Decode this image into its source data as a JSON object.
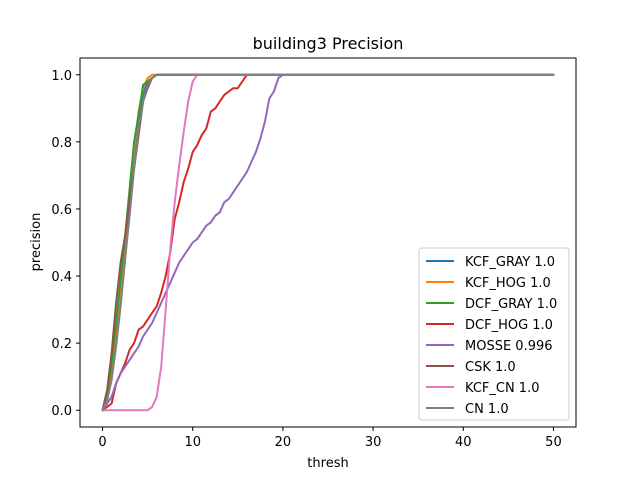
{
  "chart_data": {
    "type": "line",
    "title": "building3 Precision",
    "xlabel": "thresh",
    "ylabel": "precision",
    "xlim": [
      -2.5,
      52.5
    ],
    "ylim": [
      -0.05,
      1.05
    ],
    "xticks": [
      0,
      10,
      20,
      30,
      40,
      50
    ],
    "yticks": [
      0.0,
      0.2,
      0.4,
      0.6,
      0.8,
      1.0
    ],
    "xtick_labels": [
      "0",
      "10",
      "20",
      "30",
      "40",
      "50"
    ],
    "ytick_labels": [
      "0.0",
      "0.2",
      "0.4",
      "0.6",
      "0.8",
      "1.0"
    ],
    "grid": false,
    "legend_position": "lower-right",
    "series": [
      {
        "name": "KCF_GRAY 1.0",
        "color": "#1f77b4",
        "x": [
          0,
          0.5,
          1,
          1.5,
          2,
          2.5,
          3,
          3.5,
          4,
          4.5,
          5,
          5.5,
          6,
          7,
          8,
          50
        ],
        "y": [
          0,
          0.03,
          0.1,
          0.2,
          0.32,
          0.45,
          0.6,
          0.74,
          0.86,
          0.94,
          0.98,
          0.99,
          1.0,
          1.0,
          1.0,
          1.0
        ]
      },
      {
        "name": "KCF_HOG 1.0",
        "color": "#ff7f0e",
        "x": [
          0,
          0.5,
          1,
          1.5,
          2,
          2.5,
          3,
          3.5,
          4,
          4.5,
          5,
          5.5,
          6,
          7,
          8,
          50
        ],
        "y": [
          0,
          0.04,
          0.12,
          0.24,
          0.36,
          0.5,
          0.65,
          0.78,
          0.89,
          0.96,
          0.99,
          1.0,
          1.0,
          1.0,
          1.0,
          1.0
        ]
      },
      {
        "name": "DCF_GRAY 1.0",
        "color": "#2ca02c",
        "x": [
          0,
          0.5,
          1,
          1.5,
          2,
          2.5,
          3,
          3.5,
          4,
          4.5,
          5,
          5.5,
          6,
          7,
          8,
          50
        ],
        "y": [
          0,
          0.05,
          0.14,
          0.26,
          0.39,
          0.52,
          0.66,
          0.8,
          0.88,
          0.97,
          0.98,
          0.99,
          1.0,
          1.0,
          1.0,
          1.0
        ]
      },
      {
        "name": "DCF_HOG 1.0",
        "color": "#d62728",
        "x": [
          0,
          0.5,
          1,
          1.5,
          2,
          2.5,
          3,
          3.5,
          4,
          4.5,
          5,
          5.5,
          6,
          6.5,
          7,
          7.5,
          8,
          8.5,
          9,
          9.5,
          10,
          10.5,
          11,
          11.5,
          12,
          12.5,
          13,
          13.5,
          14,
          14.5,
          15,
          15.5,
          16,
          17,
          50
        ],
        "y": [
          0,
          0.01,
          0.02,
          0.08,
          0.11,
          0.14,
          0.18,
          0.2,
          0.24,
          0.25,
          0.27,
          0.29,
          0.31,
          0.35,
          0.4,
          0.47,
          0.57,
          0.62,
          0.68,
          0.72,
          0.77,
          0.79,
          0.82,
          0.84,
          0.89,
          0.9,
          0.92,
          0.94,
          0.95,
          0.96,
          0.96,
          0.98,
          1.0,
          1.0,
          1.0
        ]
      },
      {
        "name": "MOSSE 0.996",
        "color": "#9467bd",
        "x": [
          0,
          0.5,
          1,
          1.5,
          2,
          2.5,
          3,
          3.5,
          4,
          4.5,
          5,
          5.5,
          6,
          6.5,
          7,
          7.5,
          8,
          8.5,
          9,
          9.5,
          10,
          10.5,
          11,
          11.5,
          12,
          12.5,
          13,
          13.5,
          14,
          14.5,
          15,
          15.5,
          16,
          16.5,
          17,
          17.5,
          18,
          18.5,
          19,
          19.5,
          20,
          21,
          50
        ],
        "y": [
          0,
          0.02,
          0.04,
          0.08,
          0.11,
          0.13,
          0.15,
          0.17,
          0.19,
          0.22,
          0.24,
          0.26,
          0.29,
          0.32,
          0.35,
          0.38,
          0.41,
          0.44,
          0.46,
          0.48,
          0.5,
          0.51,
          0.53,
          0.55,
          0.56,
          0.58,
          0.59,
          0.62,
          0.63,
          0.65,
          0.67,
          0.69,
          0.71,
          0.74,
          0.77,
          0.81,
          0.86,
          0.93,
          0.95,
          0.99,
          1.0,
          1.0,
          1.0
        ]
      },
      {
        "name": "CSK 1.0",
        "color": "#8c564b",
        "x": [
          0,
          0.5,
          1,
          1.5,
          2,
          2.5,
          3,
          3.5,
          4,
          4.5,
          5,
          5.5,
          6,
          7,
          8,
          50
        ],
        "y": [
          0,
          0.06,
          0.17,
          0.32,
          0.44,
          0.52,
          0.63,
          0.72,
          0.82,
          0.92,
          0.96,
          0.99,
          1.0,
          1.0,
          1.0,
          1.0
        ]
      },
      {
        "name": "KCF_CN 1.0",
        "color": "#e377c2",
        "x": [
          0,
          1,
          2,
          3,
          4,
          5,
          5.5,
          6,
          6.5,
          7,
          7.5,
          8,
          8.5,
          9,
          9.5,
          10,
          10.5,
          11,
          50
        ],
        "y": [
          0,
          0,
          0,
          0,
          0,
          0,
          0.01,
          0.04,
          0.13,
          0.3,
          0.48,
          0.62,
          0.73,
          0.83,
          0.92,
          0.98,
          1.0,
          1.0,
          1.0
        ]
      },
      {
        "name": "CN 1.0",
        "color": "#7f7f7f",
        "x": [
          0,
          0.5,
          1,
          1.5,
          2,
          2.5,
          3,
          3.5,
          4,
          4.5,
          5,
          5.5,
          6,
          7,
          8,
          50
        ],
        "y": [
          0,
          0.03,
          0.09,
          0.19,
          0.31,
          0.45,
          0.58,
          0.72,
          0.84,
          0.92,
          0.97,
          0.99,
          1.0,
          1.0,
          1.0,
          1.0
        ]
      }
    ]
  }
}
